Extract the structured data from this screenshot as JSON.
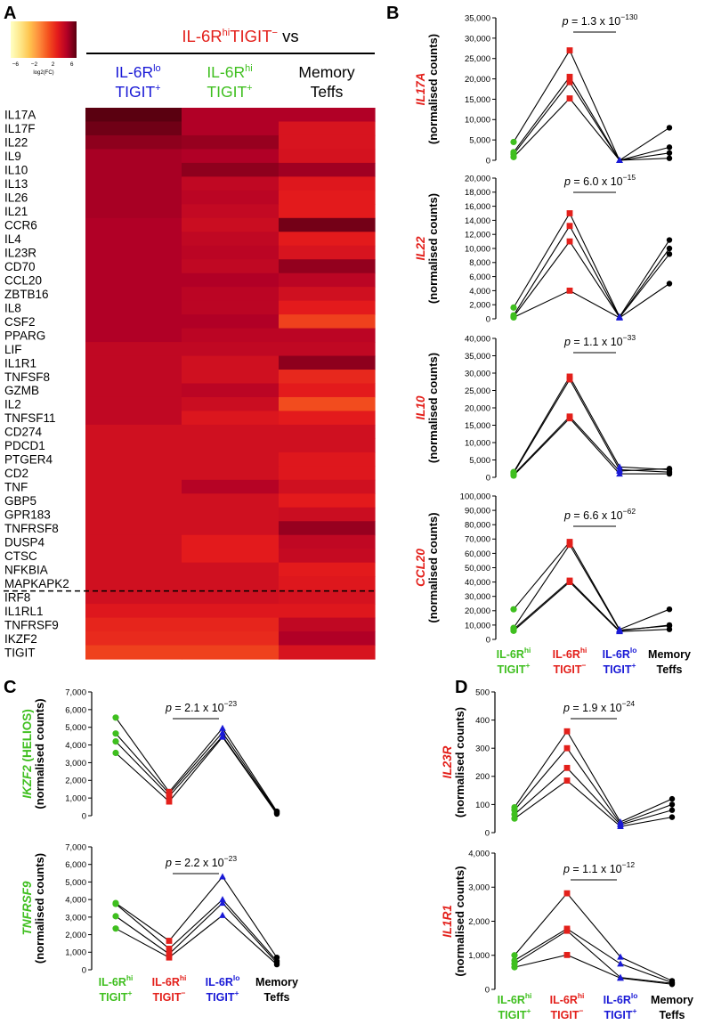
{
  "colors": {
    "green": "#3fbf1f",
    "red": "#e3201b",
    "blue": "#1a1ad6",
    "black": "#000000",
    "scale": [
      "#ffffc4",
      "#fee88a",
      "#fec44f",
      "#fd8d3c",
      "#f4511e",
      "#e31a1c",
      "#b10026",
      "#5a0010"
    ]
  },
  "panel_a": {
    "letter": "A",
    "colorbar": {
      "ticks": [
        "−6",
        "−2",
        "2",
        "6"
      ],
      "label": "log2(FC)",
      "min": -7,
      "max": 7
    },
    "header": {
      "main": "IL-6R",
      "main_sup": "hi",
      "main_b": "TIGIT",
      "main_b_sup": "−",
      "main_c": " vs"
    },
    "columns": [
      {
        "l1": "IL-6R",
        "l1_sup": "lo",
        "l2": "TIGIT",
        "l2_sup": "+",
        "color": "blue"
      },
      {
        "l1": "IL-6R",
        "l1_sup": "hi",
        "l2": "TIGIT",
        "l2_sup": "+",
        "color": "green"
      },
      {
        "l1": "Memory",
        "l1_sup": "",
        "l2": "Teffs",
        "l2_sup": "",
        "color": "black"
      }
    ],
    "chart_data": {
      "type": "heatmap",
      "value_label": "log2(FC)",
      "genes": [
        "IL17A",
        "IL17F",
        "IL22",
        "IL9",
        "IL10",
        "IL13",
        "IL26",
        "IL21",
        "CCR6",
        "IL4",
        "IL23R",
        "CD70",
        "CCL20",
        "ZBTB16",
        "IL8",
        "CSF2",
        "PPARG",
        "LIF",
        "IL1R1",
        "TNFSF8",
        "GZMB",
        "IL2",
        "TNFSF11",
        "CD274",
        "PDCD1",
        "PTGER4",
        "CD2",
        "TNF",
        "GBP5",
        "GPR183",
        "TNFRSF8",
        "DUSP4",
        "CTSC",
        "NFKBIA",
        "MAPKAPK2",
        "IRF8",
        "IL1RL1",
        "TNFRSF9",
        "IKZF2",
        "TIGIT"
      ],
      "values": [
        [
          7.2,
          5.0,
          5.0
        ],
        [
          6.5,
          5.0,
          3.5
        ],
        [
          5.8,
          5.6,
          3.5
        ],
        [
          5.2,
          5.0,
          3.6
        ],
        [
          5.2,
          5.8,
          5.4
        ],
        [
          5.2,
          4.4,
          3.2
        ],
        [
          5.2,
          4.6,
          3.0
        ],
        [
          5.2,
          4.3,
          3.0
        ],
        [
          5.0,
          4.0,
          6.4
        ],
        [
          5.0,
          4.4,
          3.0
        ],
        [
          5.0,
          4.6,
          3.5
        ],
        [
          5.0,
          4.4,
          5.7
        ],
        [
          5.0,
          5.0,
          4.6
        ],
        [
          5.0,
          4.6,
          3.8
        ],
        [
          5.0,
          4.6,
          3.0
        ],
        [
          5.0,
          5.0,
          1.6
        ],
        [
          5.0,
          4.6,
          4.6
        ],
        [
          4.4,
          4.4,
          4.4
        ],
        [
          4.4,
          3.8,
          5.8
        ],
        [
          4.4,
          3.8,
          2.5
        ],
        [
          4.4,
          4.6,
          3.0
        ],
        [
          4.4,
          4.0,
          1.2
        ],
        [
          4.4,
          3.3,
          3.0
        ],
        [
          3.8,
          3.8,
          3.8
        ],
        [
          3.8,
          3.8,
          3.8
        ],
        [
          3.8,
          3.8,
          3.2
        ],
        [
          3.8,
          3.8,
          3.2
        ],
        [
          3.8,
          4.8,
          3.8
        ],
        [
          3.8,
          3.8,
          3.0
        ],
        [
          3.8,
          3.8,
          4.0
        ],
        [
          3.8,
          3.8,
          5.6
        ],
        [
          3.8,
          3.0,
          4.4
        ],
        [
          3.8,
          3.0,
          4.2
        ],
        [
          3.8,
          3.8,
          3.0
        ],
        [
          3.8,
          3.8,
          3.2
        ],
        [
          3.8,
          3.8,
          3.6
        ],
        [
          3.2,
          3.2,
          3.2
        ],
        [
          2.6,
          2.6,
          4.4
        ],
        [
          2.4,
          2.4,
          5.0
        ],
        [
          1.6,
          1.6,
          3.5
        ]
      ],
      "cutoff_after": "IRF8"
    }
  },
  "panel_b": {
    "letter": "B",
    "groups": [
      "IL-6Rhi TIGIT+",
      "IL-6Rhi TIGIT−",
      "IL-6Rlo TIGIT+",
      "Memory Teffs"
    ],
    "xlabels": [
      {
        "l1": "IL-6R",
        "s1": "hi",
        "l2": "TIGIT",
        "s2": "+",
        "color": "green"
      },
      {
        "l1": "IL-6R",
        "s1": "hi",
        "l2": "TIGIT",
        "s2": "−",
        "color": "red"
      },
      {
        "l1": "IL-6R",
        "s1": "lo",
        "l2": "TIGIT",
        "s2": "+",
        "color": "blue"
      },
      {
        "l1": "Memory",
        "s1": "",
        "l2": "Teffs",
        "s2": "",
        "color": "black"
      }
    ],
    "chart_data": [
      {
        "type": "line",
        "gene": "IL17A",
        "ylabel": "(normalised counts)",
        "pval": "1.3 x 10",
        "pexp": "−130",
        "ylim": [
          0,
          35000
        ],
        "yticks": [
          0,
          5000,
          10000,
          15000,
          20000,
          25000,
          30000,
          35000
        ],
        "series": [
          [
            4500,
            27000,
            0,
            8000
          ],
          [
            2000,
            20500,
            0,
            3200
          ],
          [
            1500,
            19200,
            0,
            1800
          ],
          [
            800,
            15200,
            0,
            500
          ]
        ]
      },
      {
        "type": "line",
        "gene": "IL22",
        "ylabel": "(normalised counts)",
        "pval": "6.0 x 10",
        "pexp": "−15",
        "ylim": [
          0,
          20000
        ],
        "yticks": [
          0,
          2000,
          4000,
          6000,
          8000,
          10000,
          12000,
          14000,
          16000,
          18000,
          20000
        ],
        "series": [
          [
            1600,
            15000,
            300,
            11200
          ],
          [
            500,
            13200,
            200,
            10000
          ],
          [
            300,
            11000,
            200,
            9200
          ],
          [
            200,
            4000,
            150,
            5000
          ]
        ]
      },
      {
        "type": "line",
        "gene": "IL10",
        "ylabel": "(normalised counts)",
        "pval": "1.1 x 10",
        "pexp": "−33",
        "ylim": [
          0,
          40000
        ],
        "yticks": [
          0,
          5000,
          10000,
          15000,
          20000,
          25000,
          30000,
          35000,
          40000
        ],
        "series": [
          [
            1500,
            29000,
            3000,
            2200
          ],
          [
            1200,
            28200,
            2200,
            1500
          ],
          [
            800,
            17500,
            1800,
            2500
          ],
          [
            500,
            17000,
            1000,
            1000
          ]
        ]
      },
      {
        "type": "line",
        "gene": "CCL20",
        "ylabel": "(normalised counts)",
        "pval": "6.6 x 10",
        "pexp": "−62",
        "ylim": [
          0,
          100000
        ],
        "yticks": [
          0,
          10000,
          20000,
          30000,
          40000,
          50000,
          60000,
          70000,
          80000,
          90000,
          100000
        ],
        "series": [
          [
            21000,
            68000,
            7000,
            21000
          ],
          [
            8000,
            66000,
            6500,
            9500
          ],
          [
            7000,
            41000,
            6000,
            10000
          ],
          [
            6000,
            40000,
            5500,
            7000
          ]
        ]
      }
    ]
  },
  "panel_c": {
    "letter": "C",
    "chart_data": [
      {
        "type": "line",
        "gene": "IKZF2 (HELIOS)",
        "gene_italic": "IKZF2",
        "gene_plain": " (HELIOS)",
        "ylabel": "(normalised counts)",
        "pval": "2.1 x 10",
        "pexp": "−23",
        "ylim": [
          0,
          7000
        ],
        "yticks": [
          0,
          1000,
          2000,
          3000,
          4000,
          5000,
          6000,
          7000
        ],
        "series": [
          [
            5550,
            1350,
            4950,
            250
          ],
          [
            4650,
            1250,
            4700,
            200
          ],
          [
            4200,
            1100,
            4500,
            150
          ],
          [
            3550,
            800,
            4450,
            100
          ]
        ]
      },
      {
        "type": "line",
        "gene": "TNFRSF9",
        "ylabel": "(normalised counts)",
        "pval": "2.2 x 10",
        "pexp": "−23",
        "ylim": [
          0,
          7000
        ],
        "yticks": [
          0,
          1000,
          2000,
          3000,
          4000,
          5000,
          6000,
          7000
        ],
        "series": [
          [
            3800,
            1650,
            5300,
            700
          ],
          [
            3750,
            1200,
            4000,
            500
          ],
          [
            3050,
            900,
            3800,
            400
          ],
          [
            2350,
            700,
            3100,
            300
          ]
        ]
      }
    ]
  },
  "panel_d": {
    "letter": "D",
    "chart_data": [
      {
        "type": "line",
        "gene": "IL23R",
        "ylabel": "(normalised counts)",
        "pval": "1.9 x 10",
        "pexp": "−24",
        "ylim": [
          0,
          500
        ],
        "yticks": [
          0,
          100,
          200,
          300,
          400,
          500
        ],
        "series": [
          [
            90,
            360,
            38,
            120
          ],
          [
            80,
            300,
            32,
            100
          ],
          [
            65,
            230,
            28,
            80
          ],
          [
            50,
            185,
            22,
            55
          ]
        ]
      },
      {
        "type": "line",
        "gene": "IL1R1",
        "ylabel": "(normalised counts)",
        "pval": "1.1 x 10",
        "pexp": "−12",
        "ylim": [
          0,
          4000
        ],
        "yticks": [
          0,
          1000,
          2000,
          3000,
          4000
        ],
        "series": [
          [
            1000,
            2820,
            950,
            250
          ],
          [
            850,
            1780,
            750,
            200
          ],
          [
            750,
            1720,
            350,
            180
          ],
          [
            650,
            1010,
            330,
            150
          ]
        ]
      }
    ]
  }
}
